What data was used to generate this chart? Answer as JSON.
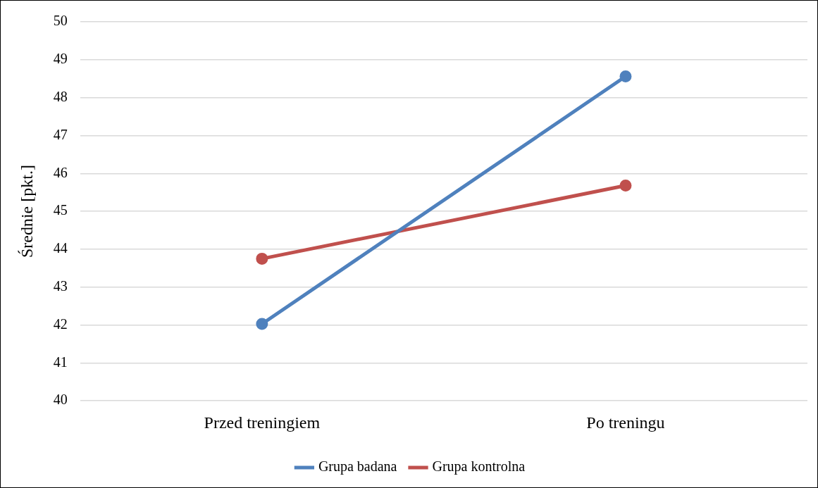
{
  "chart_data": {
    "type": "line",
    "ylabel": "Średnie [pkt.]",
    "categories": [
      "Przed treningiem",
      "Po treningu"
    ],
    "series": [
      {
        "name": "Grupa badana",
        "color": "#4f81bd",
        "values": [
          42.03,
          48.56
        ]
      },
      {
        "name": "Grupa kontrolna",
        "color": "#c0504d",
        "values": [
          43.75,
          45.68
        ]
      }
    ],
    "ylim": [
      40,
      50
    ],
    "yticks": [
      40,
      41,
      42,
      43,
      44,
      45,
      46,
      47,
      48,
      49,
      50
    ],
    "grid": "y",
    "legend": "bottom",
    "marker": "circle",
    "line_style": "solid"
  }
}
